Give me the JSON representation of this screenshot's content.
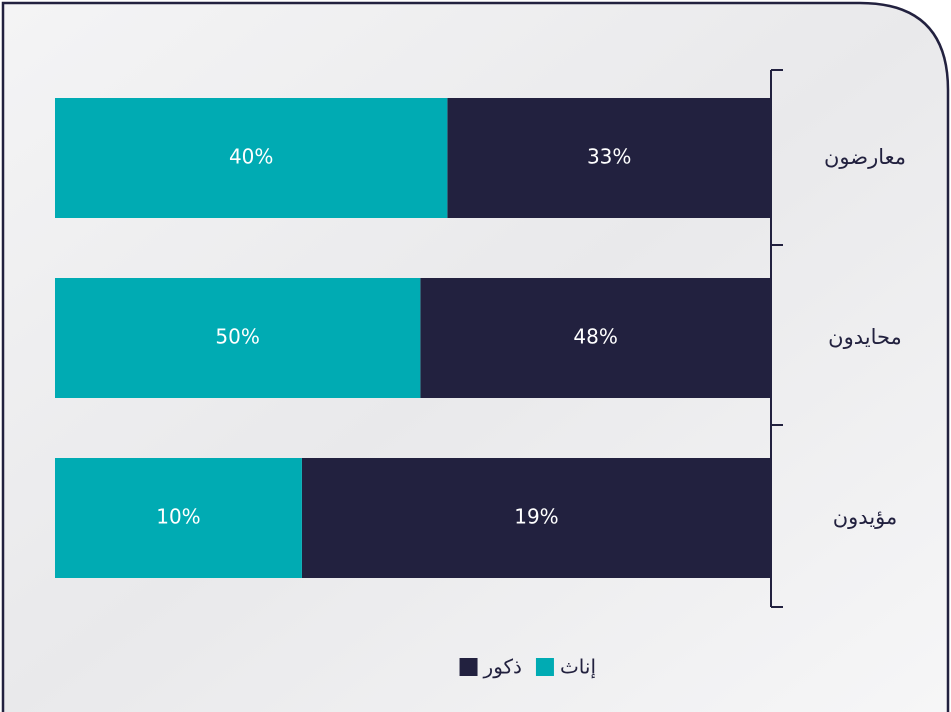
{
  "chart_data": {
    "type": "bar",
    "orientation": "horizontal",
    "stack": "percent",
    "direction": "rtl",
    "categories": [
      "معارضون",
      "محايدون",
      "مؤيدون"
    ],
    "series": [
      {
        "name": "ذكور",
        "color": "#22213f",
        "values": [
          33,
          48,
          19
        ],
        "value_labels": [
          "33%",
          "48%",
          "19%"
        ]
      },
      {
        "name": "إناث",
        "color": "#00abb3",
        "values": [
          40,
          50,
          10
        ],
        "value_labels": [
          "40%",
          "50%",
          "10%"
        ]
      }
    ],
    "legend": "bottom"
  }
}
